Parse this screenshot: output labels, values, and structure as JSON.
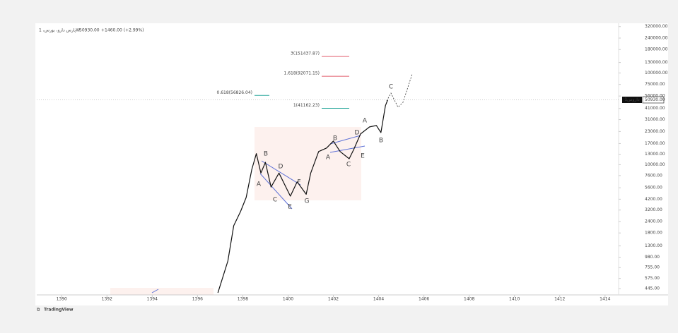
{
  "chart_data": {
    "type": "line",
    "symbol": "پارس دارو، بورس، 1W",
    "price_label": "50930.00",
    "change_label": "+1460.00 (+2.99%)",
    "price_tag_symbol": "داروس1",
    "price_value": 50930,
    "brand": "TradingView",
    "log_scale": true,
    "color": "#111111",
    "x": [
      1396.9,
      1397.34,
      1397.6,
      1397.9,
      1398.15,
      1398.4,
      1398.6,
      1398.8,
      1399.0,
      1399.25,
      1399.6,
      1400.1,
      1400.4,
      1400.8,
      1401.0,
      1401.35,
      1401.7,
      1402.0,
      1402.3,
      1402.7,
      1402.9,
      1403.2,
      1403.6,
      1403.9,
      1404.1,
      1404.3,
      1404.4
    ],
    "values": [
      400,
      890,
      2160,
      3080,
      4390,
      8900,
      13200,
      8100,
      10600,
      5700,
      8100,
      4540,
      6500,
      4750,
      8100,
      13900,
      15200,
      18100,
      13900,
      11600,
      14600,
      21600,
      25800,
      26700,
      22400,
      44000,
      50930
    ],
    "xlim": [
      1388.9,
      1414.6
    ],
    "xticks": [
      1390,
      1392,
      1394,
      1396,
      1398,
      1400,
      1402,
      1404,
      1406,
      1408,
      1410,
      1412,
      1414
    ],
    "ylim": [
      380,
      330000
    ],
    "yticks": [
      {
        "value": 320000,
        "label": "320000.00"
      },
      {
        "value": 240000,
        "label": "240000.00"
      },
      {
        "value": 180000,
        "label": "180000.00"
      },
      {
        "value": 130000,
        "label": "130000.00"
      },
      {
        "value": 100000,
        "label": "100000.00"
      },
      {
        "value": 75000,
        "label": "75000.00"
      },
      {
        "value": 56000,
        "label": "56000.00"
      },
      {
        "value": 41000,
        "label": "41000.00"
      },
      {
        "value": 31000,
        "label": "31000.00"
      },
      {
        "value": 23000,
        "label": "23000.00"
      },
      {
        "value": 17000,
        "label": "17000.00"
      },
      {
        "value": 13000,
        "label": "13000.00"
      },
      {
        "value": 10000,
        "label": "10000.00"
      },
      {
        "value": 7600,
        "label": "7600.00"
      },
      {
        "value": 5600,
        "label": "5600.00"
      },
      {
        "value": 4200,
        "label": "4200.00"
      },
      {
        "value": 3200,
        "label": "3200.00"
      },
      {
        "value": 2400,
        "label": "2400.00"
      },
      {
        "value": 1800,
        "label": "1800.00"
      },
      {
        "value": 1300,
        "label": "1300.00"
      },
      {
        "value": 980,
        "label": "980.00"
      },
      {
        "value": 755,
        "label": "755.00"
      },
      {
        "value": 575,
        "label": "575.00"
      },
      {
        "value": 445,
        "label": "445.00"
      }
    ],
    "levels": [
      {
        "label": "3(151437.87)",
        "value": 151437.87,
        "color": "#e05a6a"
      },
      {
        "label": "1.618(92071.15)",
        "value": 92071.15,
        "color": "#e05a6a"
      },
      {
        "label": "0.618(56826.04)",
        "value": 56826.04,
        "color": "#26a69a"
      },
      {
        "label": "1(41162.23)",
        "value": 41162.23,
        "color": "#26a69a"
      }
    ],
    "wave_labels": [
      "A",
      "B",
      "C",
      "D",
      "E",
      "F",
      "G",
      "A",
      "B",
      "C",
      "D",
      "E",
      "A",
      "B",
      "C"
    ]
  }
}
